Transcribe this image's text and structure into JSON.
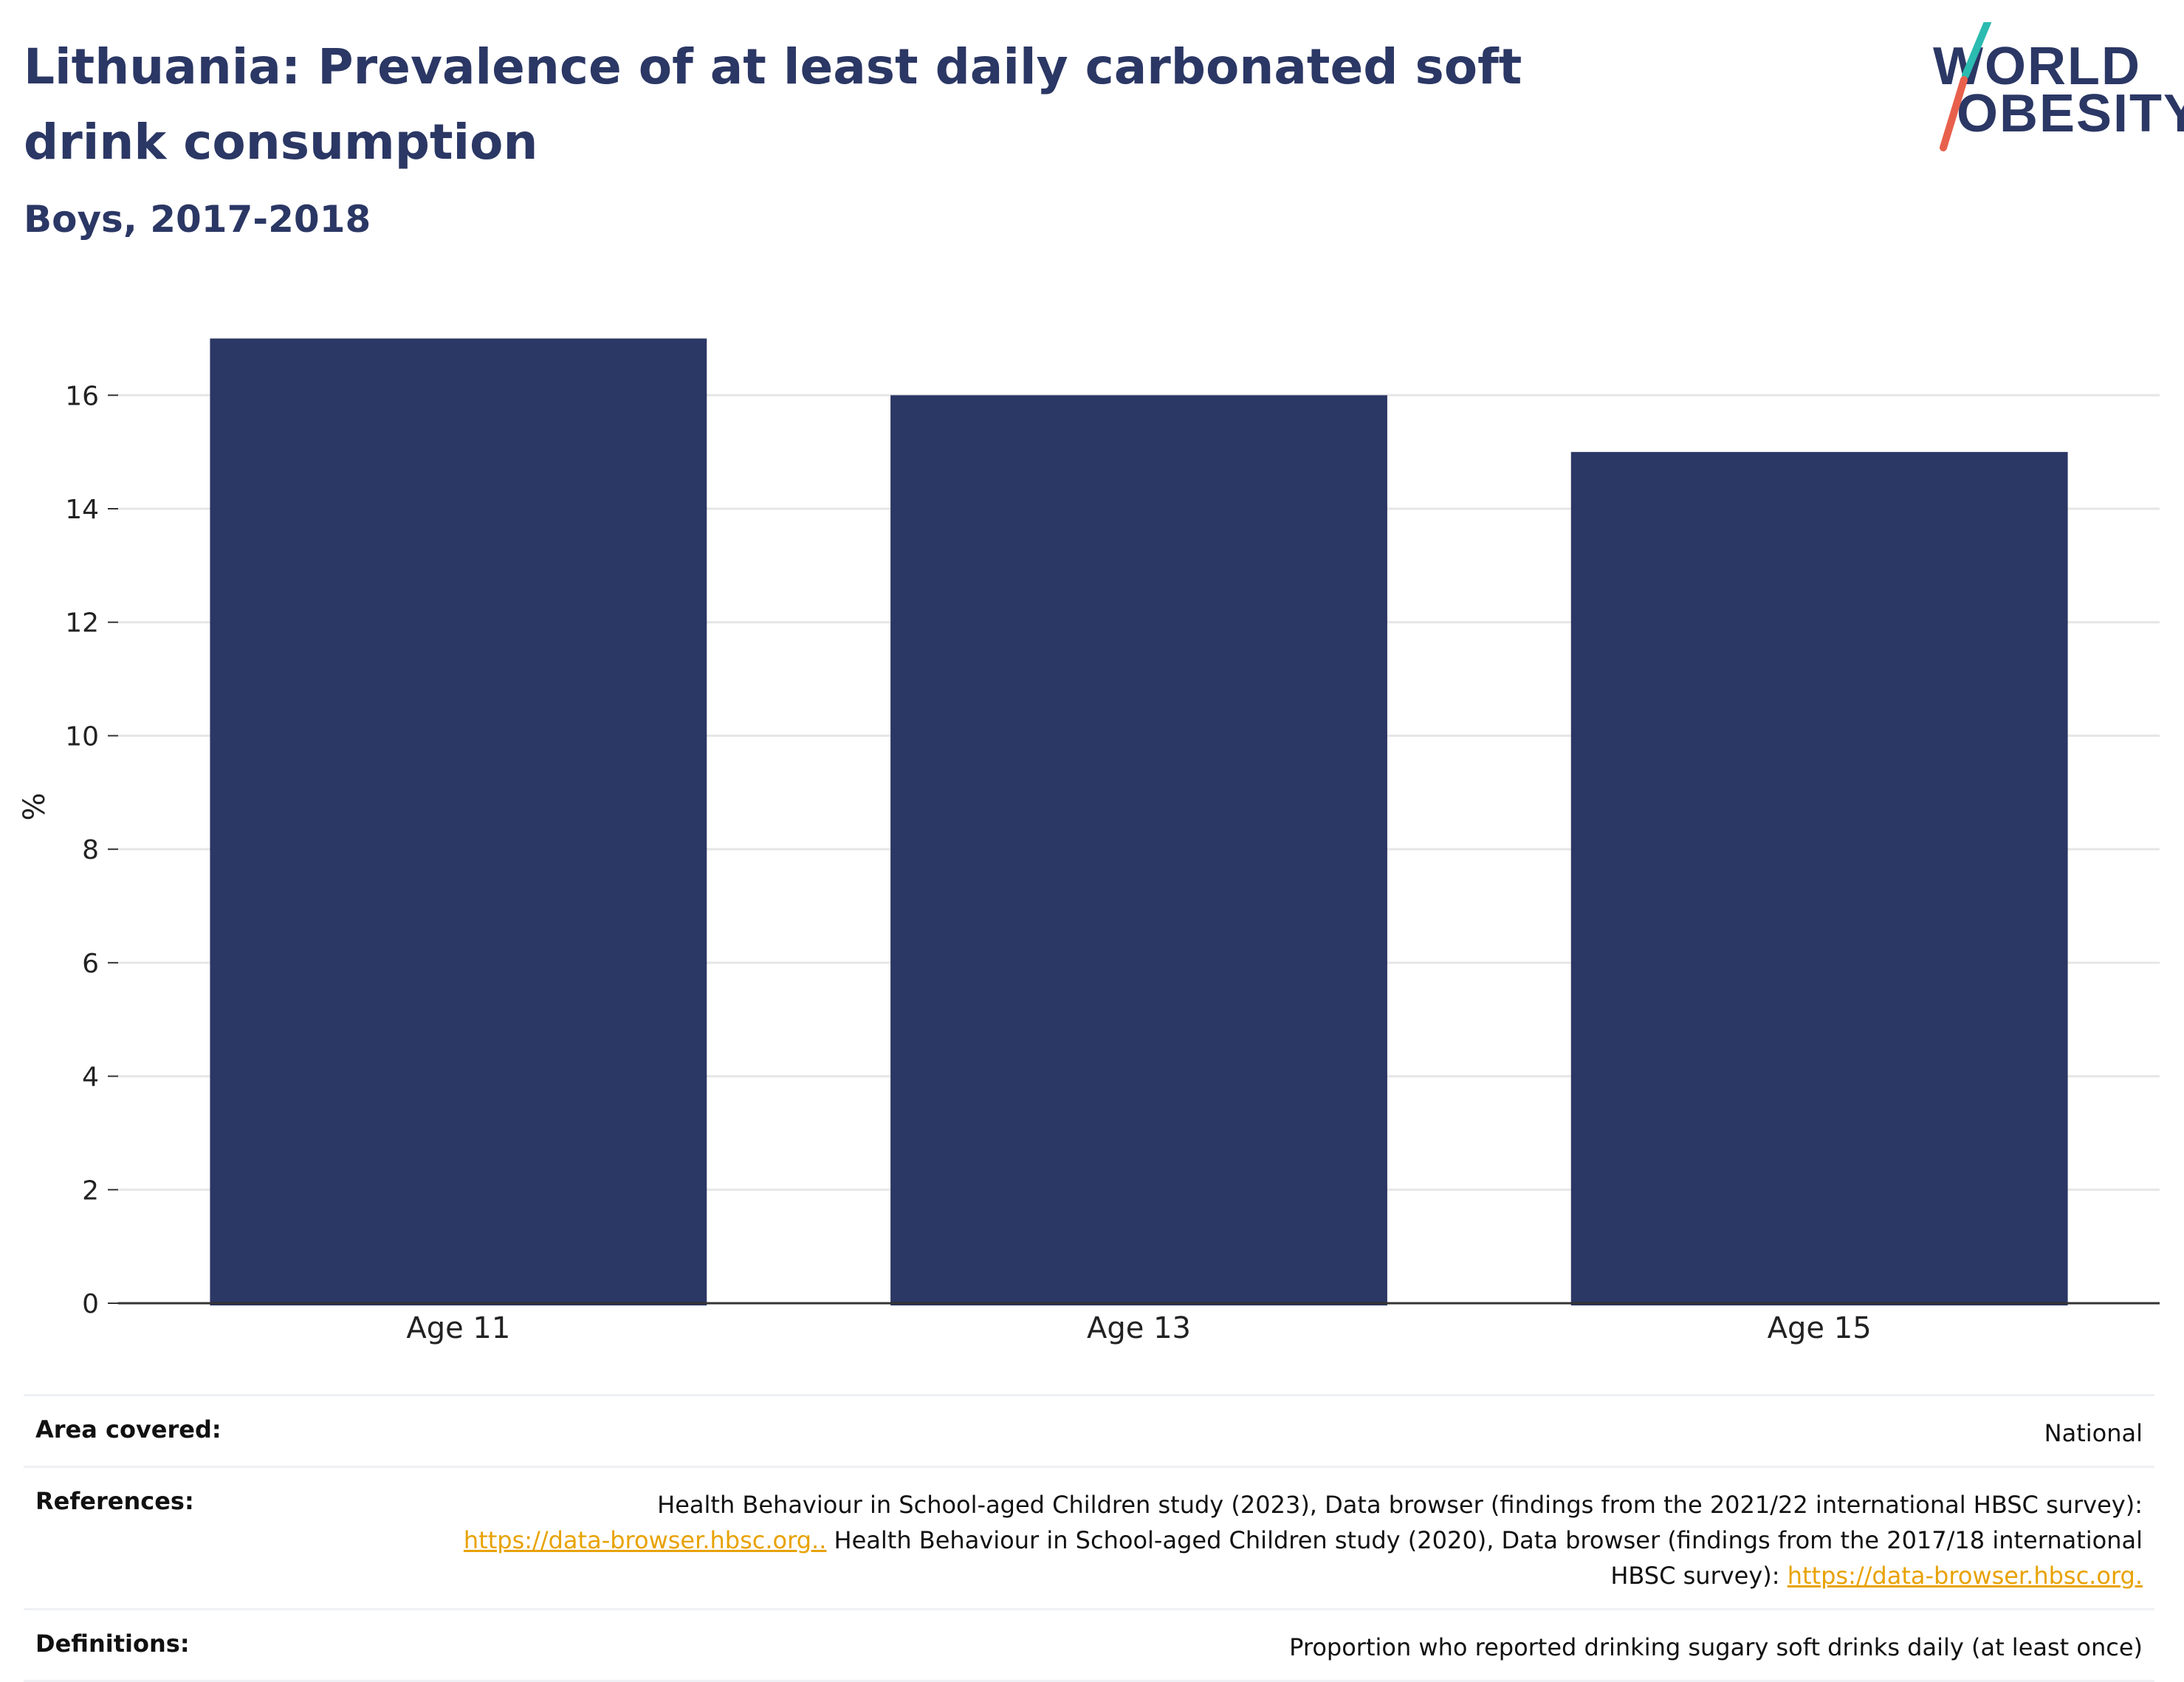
{
  "header": {
    "title": "Lithuania: Prevalence of at least daily carbonated soft drink consumption",
    "subtitle": "Boys, 2017-2018"
  },
  "logo": {
    "line1": "WORLD",
    "line2": "OBESITY",
    "colors": {
      "text": "#2b3764",
      "slash_top": "#2bbbb0",
      "slash_bottom": "#e8604c"
    }
  },
  "chart_data": {
    "type": "bar",
    "categories": [
      "Age 11",
      "Age 13",
      "Age 15"
    ],
    "values": [
      17,
      16,
      15
    ],
    "title": "Lithuania: Prevalence of at least daily carbonated soft drink consumption",
    "subtitle": "Boys, 2017-2018",
    "xlabel": "",
    "ylabel": "%",
    "ylim": [
      0,
      17.5
    ],
    "yticks": [
      0,
      2,
      4,
      6,
      8,
      10,
      12,
      14,
      16
    ],
    "grid": true,
    "bar_color": "#2b3764"
  },
  "meta": {
    "area": {
      "label": "Area covered:",
      "value": "National"
    },
    "references": {
      "label": "References:",
      "part1": "Health Behaviour in School-aged Children study (2023), Data browser (findings from the 2021/22 international HBSC survey):",
      "link1": "https://data-browser.hbsc.org..",
      "part2": " Health Behaviour in School-aged Children study (2020), Data browser (findings from the 2017/18 international HBSC survey): ",
      "link2": "https://data-browser.hbsc.org."
    },
    "definitions": {
      "label": "Definitions:",
      "value": "Proportion who reported drinking sugary soft drinks daily (at least once)"
    }
  }
}
